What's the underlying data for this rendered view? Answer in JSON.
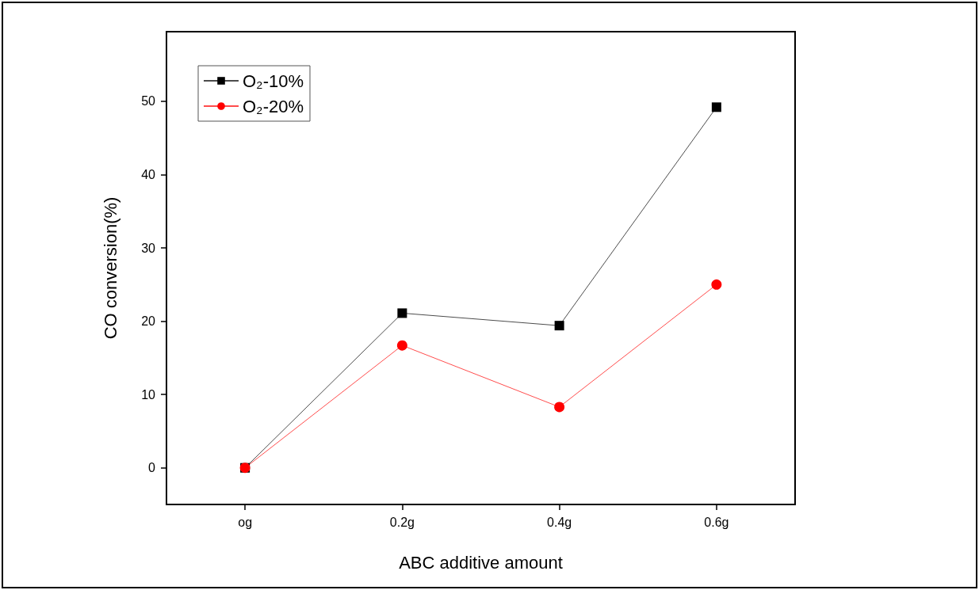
{
  "chart_data": {
    "type": "line",
    "xlabel": "ABC additive amount",
    "ylabel": "CO conversion(%)",
    "categories": [
      "og",
      "0.2g",
      "0.4g",
      "0.6g"
    ],
    "series": [
      {
        "name": "O₂-10%",
        "color": "#000000",
        "marker": "square",
        "values": [
          0,
          21.1,
          19.4,
          49.2
        ]
      },
      {
        "name": "O₂-20%",
        "color": "#ff0000",
        "marker": "circle",
        "values": [
          0,
          16.7,
          8.3,
          25
        ]
      }
    ],
    "ylim": [
      -5,
      59.5
    ],
    "yticks": [
      0,
      10,
      20,
      30,
      40,
      50
    ],
    "grid": false,
    "legend": "top left",
    "line_style": "solid"
  }
}
